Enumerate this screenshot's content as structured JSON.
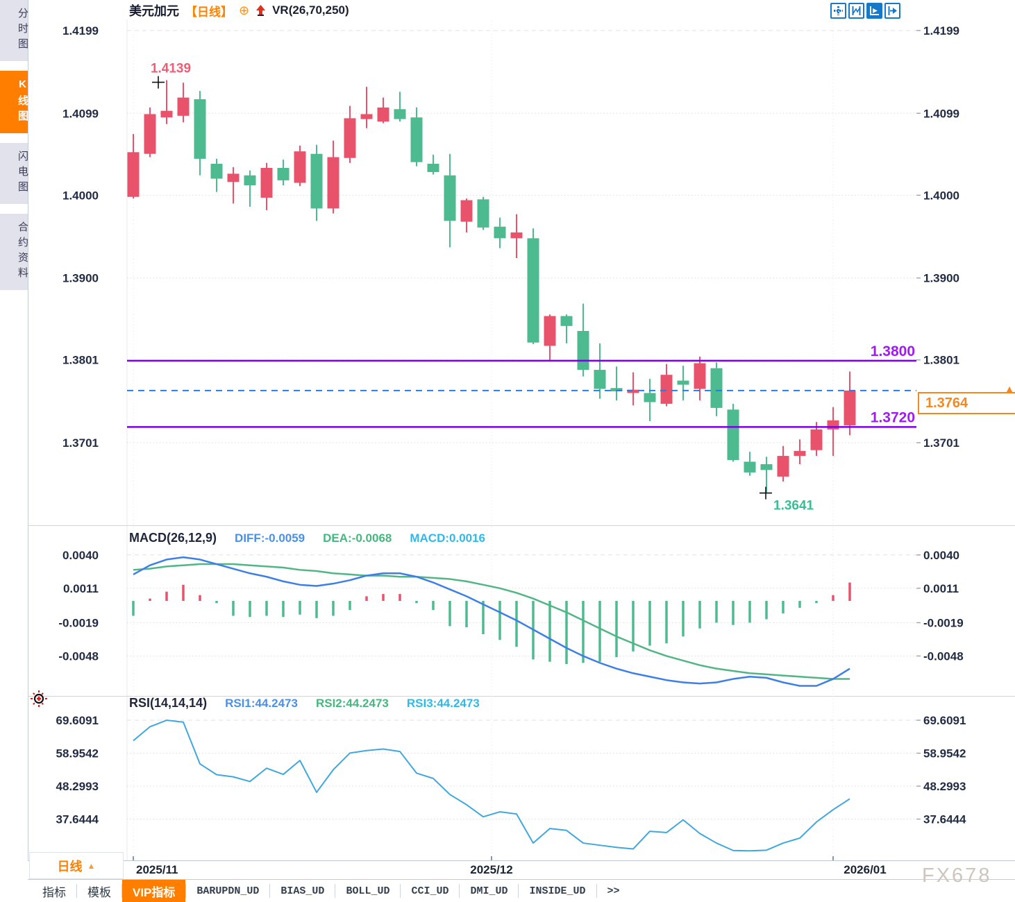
{
  "header": {
    "symbol": "美元加元",
    "period": "【日线】",
    "indicator": "VR(26,70,250)"
  },
  "window_icons": [
    {
      "name": "pan-crosshair-icon",
      "active": false
    },
    {
      "name": "fit-scale-icon",
      "active": false
    },
    {
      "name": "play-forward-icon",
      "active": true
    },
    {
      "name": "jump-to-latest-icon",
      "active": false
    }
  ],
  "sidebar": {
    "items": [
      {
        "label": "分时图",
        "active": false
      },
      {
        "label": "K线图",
        "active": true
      },
      {
        "label": "闪电图",
        "active": false
      },
      {
        "label": "合约资料",
        "active": false
      }
    ]
  },
  "macd_header": {
    "title": "MACD(26,12,9)",
    "diff": "DIFF:-0.0059",
    "dea": "DEA:-0.0068",
    "macd": "MACD:0.0016"
  },
  "rsi_header": {
    "title": "RSI(14,14,14)",
    "rsi1": "RSI1:44.2473",
    "rsi2": "RSI2:44.2473",
    "rsi3": "RSI3:44.2473"
  },
  "price_tag": {
    "value": "1.3764",
    "arrow": "▲"
  },
  "period_selector": {
    "label": "日线",
    "arrow": "▲"
  },
  "bottom_tabs": [
    {
      "label": "指标"
    },
    {
      "label": "模板"
    },
    {
      "label": "VIP指标",
      "active": true
    },
    {
      "label": "BARUPDN_UD"
    },
    {
      "label": "BIAS_UD"
    },
    {
      "label": "BOLL_UD"
    },
    {
      "label": "CCI_UD"
    },
    {
      "label": "DMI_UD"
    },
    {
      "label": "INSIDE_UD"
    },
    {
      "label": ">>"
    }
  ],
  "watermark": "FX678",
  "chart_data": {
    "type": "candlestick",
    "symbol": "美元加元",
    "period": "日线",
    "overlay_indicator": "VR(26,70,250)",
    "price_axis_ticks": [
      1.4199,
      1.4099,
      1.4,
      1.39,
      1.3801,
      1.3701
    ],
    "candles_ohlc": [
      [
        1.3998,
        1.4074,
        1.3996,
        1.4052
      ],
      [
        1.405,
        1.4106,
        1.4046,
        1.4098
      ],
      [
        1.4094,
        1.4139,
        1.4086,
        1.4102
      ],
      [
        1.4096,
        1.4136,
        1.4088,
        1.4118
      ],
      [
        1.4116,
        1.4126,
        1.4024,
        1.4044
      ],
      [
        1.4038,
        1.4044,
        1.4004,
        1.402
      ],
      [
        1.4016,
        1.4034,
        1.399,
        1.4026
      ],
      [
        1.4024,
        1.403,
        1.3986,
        1.4012
      ],
      [
        1.3997,
        1.4039,
        1.3982,
        1.4033
      ],
      [
        1.4033,
        1.4043,
        1.4012,
        1.4018
      ],
      [
        1.4015,
        1.406,
        1.4011,
        1.4053
      ],
      [
        1.405,
        1.4061,
        1.3969,
        1.3984
      ],
      [
        1.3984,
        1.4066,
        1.3978,
        1.4046
      ],
      [
        1.4045,
        1.4108,
        1.4039,
        1.4093
      ],
      [
        1.4092,
        1.4131,
        1.4081,
        1.4098
      ],
      [
        1.4089,
        1.4118,
        1.4087,
        1.4106
      ],
      [
        1.4104,
        1.4125,
        1.4089,
        1.4092
      ],
      [
        1.4094,
        1.4106,
        1.4035,
        1.404
      ],
      [
        1.4038,
        1.4049,
        1.4025,
        1.4028
      ],
      [
        1.4024,
        1.405,
        1.3937,
        1.3969
      ],
      [
        1.3968,
        1.3996,
        1.3955,
        1.3994
      ],
      [
        1.3995,
        1.3998,
        1.3958,
        1.3961
      ],
      [
        1.3962,
        1.3973,
        1.3936,
        1.3948
      ],
      [
        1.3948,
        1.3977,
        1.3924,
        1.3955
      ],
      [
        1.3948,
        1.396,
        1.382,
        1.3822
      ],
      [
        1.3818,
        1.3856,
        1.3801,
        1.3854
      ],
      [
        1.3854,
        1.3856,
        1.3821,
        1.3842
      ],
      [
        1.3836,
        1.3869,
        1.3781,
        1.3789
      ],
      [
        1.3789,
        1.3821,
        1.3754,
        1.3766
      ],
      [
        1.3767,
        1.3793,
        1.3752,
        1.3763
      ],
      [
        1.3761,
        1.3786,
        1.3746,
        1.3765
      ],
      [
        1.3761,
        1.3778,
        1.3727,
        1.375
      ],
      [
        1.3748,
        1.3796,
        1.3745,
        1.3783
      ],
      [
        1.3776,
        1.3794,
        1.3752,
        1.3771
      ],
      [
        1.3766,
        1.3805,
        1.3752,
        1.3797
      ],
      [
        1.3791,
        1.3798,
        1.3733,
        1.3743
      ],
      [
        1.3741,
        1.3748,
        1.3678,
        1.368
      ],
      [
        1.3678,
        1.369,
        1.3661,
        1.3665
      ],
      [
        1.3675,
        1.3684,
        1.3641,
        1.3668
      ],
      [
        1.366,
        1.3697,
        1.3654,
        1.3685
      ],
      [
        1.3685,
        1.3705,
        1.3675,
        1.3691
      ],
      [
        1.3692,
        1.3726,
        1.3685,
        1.3717
      ],
      [
        1.3717,
        1.3744,
        1.3685,
        1.3728
      ],
      [
        1.3722,
        1.3787,
        1.371,
        1.3764
      ]
    ],
    "high_marker": {
      "index": 2,
      "price": 1.4139
    },
    "low_marker": {
      "index": 38,
      "price": 1.3641
    },
    "hlines": [
      {
        "price": 1.38
      },
      {
        "price": 1.372
      }
    ],
    "last_price": 1.3764,
    "x_ticks": [
      {
        "label": "2025/11",
        "index": 0
      },
      {
        "label": "2025/12",
        "index": 21.5
      },
      {
        "label": "2026/01",
        "index": 42
      }
    ],
    "macd": {
      "params": "(26,12,9)",
      "axis_ticks": [
        0.004,
        0.0011,
        -0.0019,
        -0.0048
      ],
      "diff": [
        0.0023,
        0.0031,
        0.0036,
        0.0038,
        0.0036,
        0.0032,
        0.0028,
        0.0024,
        0.0021,
        0.0017,
        0.0014,
        0.0013,
        0.0015,
        0.0018,
        0.0022,
        0.0024,
        0.0024,
        0.0021,
        0.0016,
        0.001,
        0.0004,
        -0.0003,
        -0.001,
        -0.0017,
        -0.0025,
        -0.0033,
        -0.0041,
        -0.0048,
        -0.0054,
        -0.0059,
        -0.0063,
        -0.0066,
        -0.0069,
        -0.0071,
        -0.0072,
        -0.0071,
        -0.0068,
        -0.0066,
        -0.0067,
        -0.0071,
        -0.0074,
        -0.0074,
        -0.0068,
        -0.0059
      ],
      "dea": [
        0.0027,
        0.0028,
        0.003,
        0.0031,
        0.0032,
        0.0032,
        0.0032,
        0.0031,
        0.003,
        0.0029,
        0.0027,
        0.0026,
        0.0024,
        0.0023,
        0.0022,
        0.0022,
        0.0021,
        0.0021,
        0.002,
        0.0019,
        0.0017,
        0.0014,
        0.0011,
        0.0007,
        0.0002,
        -0.0004,
        -0.001,
        -0.0017,
        -0.0024,
        -0.0031,
        -0.0037,
        -0.0043,
        -0.0048,
        -0.0052,
        -0.0056,
        -0.0059,
        -0.0061,
        -0.0063,
        -0.0064,
        -0.0065,
        -0.0066,
        -0.0067,
        -0.0068,
        -0.0068
      ],
      "hist": [
        -0.0013,
        0.0002,
        0.0008,
        0.0014,
        0.0005,
        -0.0002,
        -0.0013,
        -0.0014,
        -0.0013,
        -0.0014,
        -0.0012,
        -0.0015,
        -0.0013,
        -0.0008,
        0.0004,
        0.0006,
        0.0006,
        -0.0002,
        -0.0008,
        -0.0022,
        -0.0023,
        -0.0029,
        -0.0034,
        -0.004,
        -0.0051,
        -0.0053,
        -0.0055,
        -0.0054,
        -0.0053,
        -0.0049,
        -0.0044,
        -0.0039,
        -0.0037,
        -0.0031,
        -0.0024,
        -0.0019,
        -0.0021,
        -0.0019,
        -0.0016,
        -0.0011,
        -0.0006,
        -0.0002,
        0.0005,
        0.0016
      ]
    },
    "rsi": {
      "params": "(14,14,14)",
      "axis_ticks": [
        69.6091,
        58.9542,
        48.2993,
        37.6444
      ],
      "values": [
        63.0,
        67.5,
        69.6,
        69.0,
        55.5,
        52.0,
        51.3,
        49.8,
        54.1,
        52.1,
        56.6,
        46.3,
        53.6,
        59.0,
        59.8,
        60.3,
        59.5,
        52.5,
        50.8,
        45.6,
        42.3,
        38.4,
        40.0,
        39.3,
        29.9,
        34.6,
        34.0,
        29.9,
        29.2,
        28.5,
        28.0,
        33.7,
        33.3,
        37.4,
        33.0,
        29.9,
        27.5,
        27.4,
        27.6,
        29.9,
        31.5,
        36.7,
        40.7,
        44.2
      ]
    },
    "colors": {
      "up": "#e8536b",
      "down": "#4dba8f",
      "diff_line": "#3d7ee8",
      "dea_line": "#52b586",
      "rsi_line": "#3fa7de",
      "hline": "#7b00e6",
      "hline_label": "#a01bf2",
      "last_price_line": "#1e7fe8",
      "tag": "#f5871f",
      "high_label": "#ef5d75",
      "low_label": "#35bf92"
    }
  }
}
